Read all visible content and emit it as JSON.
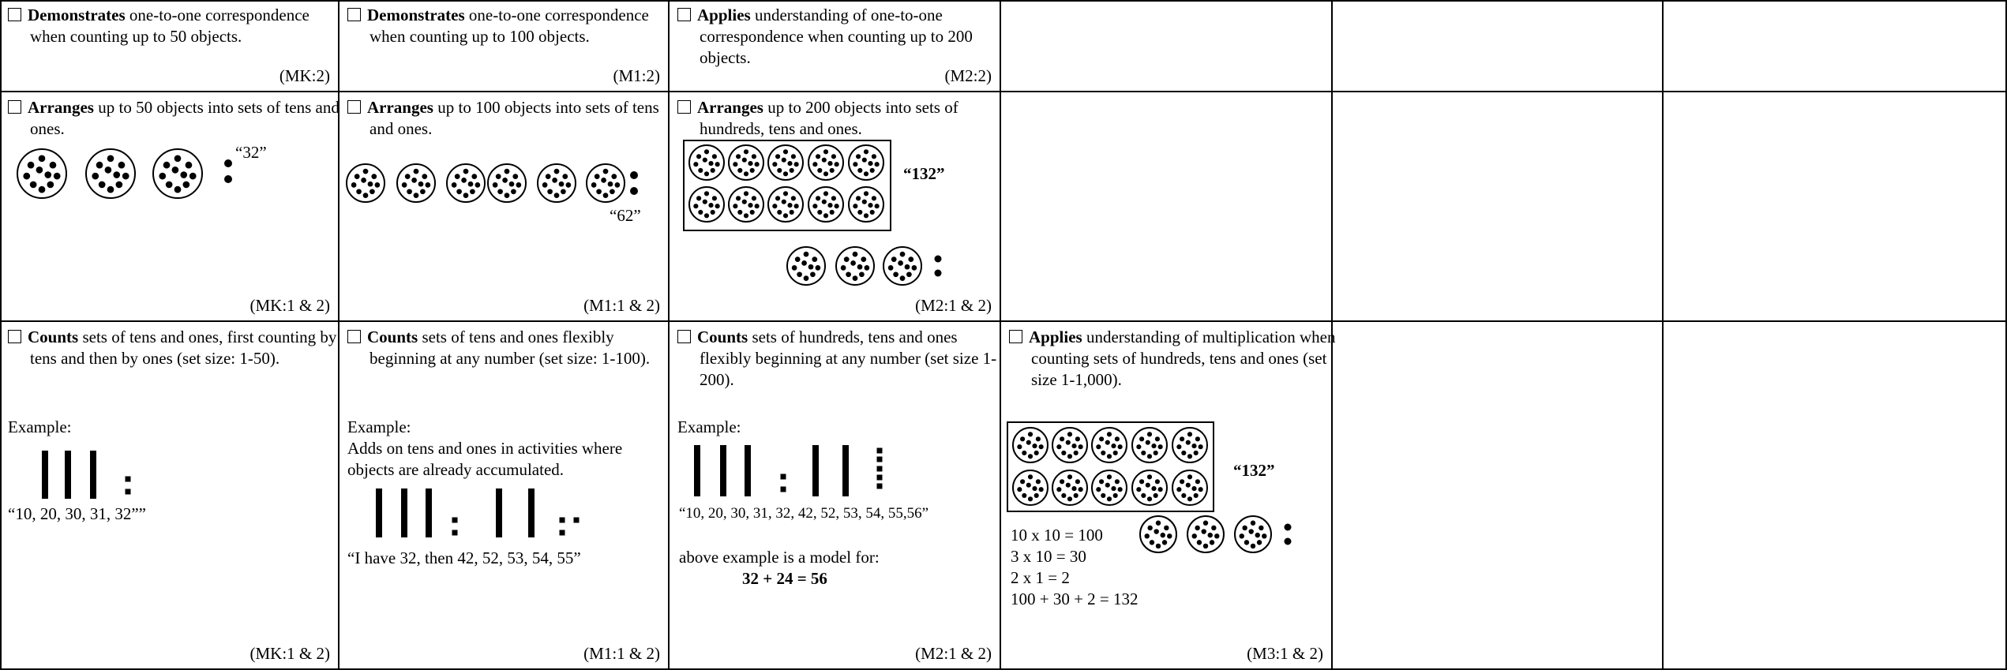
{
  "table": {
    "rows": [
      [
        {
          "lead": "Demonstrates",
          "text": "one-to-one correspondence when counting up to 50 objects.",
          "code": "(MK:2)"
        },
        {
          "lead": "Demonstrates",
          "text": "one-to-one correspondence when counting up to 100 objects.",
          "code": "(M1:2)"
        },
        {
          "lead": "Applies",
          "text": "understanding of one-to-one correspondence when counting up to 200 objects.",
          "code": "(M2:2)"
        }
      ],
      [
        {
          "lead": "Arranges",
          "text": "up to 50 objects  into sets of tens and ones.",
          "label": "“32”",
          "code": "(MK:1 & 2)"
        },
        {
          "lead": "Arranges",
          "text": "up to 100 objects into sets of tens and ones.",
          "label": "“62”",
          "code": "(M1:1 & 2)"
        },
        {
          "lead": "Arranges",
          "text": "up to 200 objects into sets of hundreds, tens and ones.",
          "label": "“132”",
          "code": "(M2:1 & 2)"
        }
      ],
      [
        {
          "lead": "Counts",
          "text": "sets of tens and ones, first counting by tens and then by ones (set size: 1-50).",
          "example": "Example:",
          "caption": "“10, 20, 30, 31, 32””",
          "code": "(MK:1 & 2)"
        },
        {
          "lead": "Counts",
          "text": "sets of tens and ones flexibly beginning at any number (set size: 1-100).",
          "example": "Example:",
          "note": "Adds on tens and ones in activities where objects are already accumulated.",
          "caption": "“I have 32, then 42, 52, 53, 54, 55”",
          "code": "(M1:1 & 2)"
        },
        {
          "lead": "Counts",
          "text": "sets of hundreds, tens and ones flexibly beginning at any number (set size 1-200).",
          "example": "Example:",
          "caption": "“10, 20, 30, 31, 32, 42, 52, 53, 54, 55,56”",
          "model": "above example is a model for:",
          "equation": "32 + 24 = 56",
          "code": "(M2:1 & 2)"
        },
        {
          "lead": "Applies",
          "text": "understanding of multiplication when counting sets of hundreds, tens and ones (set size 1-1,000).",
          "label": "“132”",
          "equations": [
            "10 x 10 = 100",
            "3 x 10 = 30",
            "2 x 1 = 2",
            "100 + 30 + 2 = 132"
          ],
          "code": "(M3:1 & 2)"
        }
      ]
    ]
  }
}
